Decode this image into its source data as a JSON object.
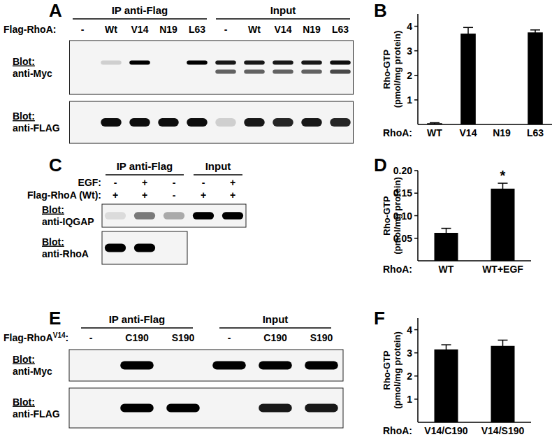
{
  "chart_data": [
    {
      "type": "bar",
      "panel": "B",
      "y_label": [
        "Rho-GTP",
        "(pmol/mg protein)"
      ],
      "x_label": "RhoA:",
      "categories": [
        "WT",
        "V14",
        "N19",
        "L63"
      ],
      "values": [
        0.05,
        3.7,
        0,
        3.75
      ],
      "errors": [
        0.02,
        0.25,
        0,
        0.1
      ],
      "color": "#000000",
      "ylim": [
        0,
        4.5
      ],
      "yticks": [
        1,
        2,
        3,
        4
      ]
    },
    {
      "type": "bar",
      "panel": "D",
      "y_label": [
        "Rho-GTP",
        "(pmol/mg protein)"
      ],
      "x_label": "RhoA:",
      "categories": [
        "WT",
        "WT+EGF"
      ],
      "values": [
        0.062,
        0.16
      ],
      "errors": [
        0.01,
        0.012
      ],
      "color": "#000000",
      "ylim": [
        0,
        0.2
      ],
      "yticks": [
        0.05,
        {
          "value": 0.1,
          "label": "0.10"
        },
        0.15,
        {
          "value": 0.2,
          "label": "0.20"
        }
      ],
      "annotations": [
        {
          "text": "*",
          "category": "WT+EGF"
        }
      ]
    },
    {
      "type": "bar",
      "panel": "F",
      "y_label": [
        "Rho-GTP",
        "(pmol/mg protein)"
      ],
      "x_label": "RhoA:",
      "categories": [
        "V14/C190",
        "V14/S190"
      ],
      "values": [
        3.15,
        3.3
      ],
      "errors": [
        0.2,
        0.25
      ],
      "color": "#000000",
      "ylim": [
        0,
        4.5
      ],
      "yticks": [
        1,
        2,
        3,
        4
      ]
    }
  ],
  "blots": [
    {
      "panel": "A",
      "headers": [
        "IP anti-Flag",
        "Input"
      ],
      "rows": [
        {
          "label": "Flag-RhoA:",
          "groups": [
            [
              "-",
              "Wt",
              "V14",
              "N19",
              "L63"
            ],
            [
              "-",
              "Wt",
              "V14",
              "N19",
              "L63"
            ]
          ]
        }
      ],
      "blots": [
        {
          "label": [
            "Blot:",
            "anti-Myc"
          ],
          "bands": [
            [
              0,
              0.15,
              1,
              0,
              1,
              0.9,
              0.9,
              0.9,
              0.9,
              0.95
            ],
            [
              0,
              0,
              0,
              0,
              0,
              0.6,
              0.6,
              0.6,
              0.6,
              0.7
            ]
          ]
        },
        {
          "label": [
            "Blot:",
            "anti-FLAG"
          ],
          "bands": [
            [
              0,
              0.95,
              0.95,
              0.95,
              0.95,
              0.15,
              0.9,
              0.85,
              0.9,
              0.85
            ]
          ]
        }
      ]
    },
    {
      "panel": "C",
      "headers": [
        "IP anti-Flag",
        "Input"
      ],
      "rows": [
        {
          "label": "EGF:",
          "groups": [
            [
              "-",
              "+",
              "-"
            ],
            [
              "-",
              "+"
            ]
          ]
        },
        {
          "label": "Flag-RhoA (Wt):",
          "groups": [
            [
              "+",
              "+",
              "-"
            ],
            [
              "+",
              "+"
            ]
          ]
        }
      ],
      "blots": [
        {
          "label": [
            "Blot:",
            "anti-IQGAP"
          ],
          "bands": [
            [
              0.1,
              0.5,
              0.3,
              1,
              1
            ]
          ]
        },
        {
          "label": [
            "Blot:",
            "anti-RhoA"
          ],
          "bands": [
            [
              1,
              1,
              0
            ]
          ]
        }
      ]
    },
    {
      "panel": "E",
      "headers": [
        "IP anti-Flag",
        "Input"
      ],
      "rows": [
        {
          "label": "Flag-RhoA",
          "label_sup": "V14",
          "label_end": ":",
          "groups": [
            [
              "-",
              "C190",
              "S190"
            ],
            [
              "-",
              "C190",
              "S190"
            ]
          ]
        }
      ],
      "blots": [
        {
          "label": [
            "Blot:",
            "anti-Myc"
          ],
          "bands": [
            [
              0,
              1,
              0,
              1,
              1,
              1
            ]
          ]
        },
        {
          "label": [
            "Blot:",
            "anti-FLAG"
          ],
          "bands": [
            [
              0,
              1,
              1,
              0,
              0.9,
              0.9
            ]
          ]
        }
      ]
    }
  ]
}
